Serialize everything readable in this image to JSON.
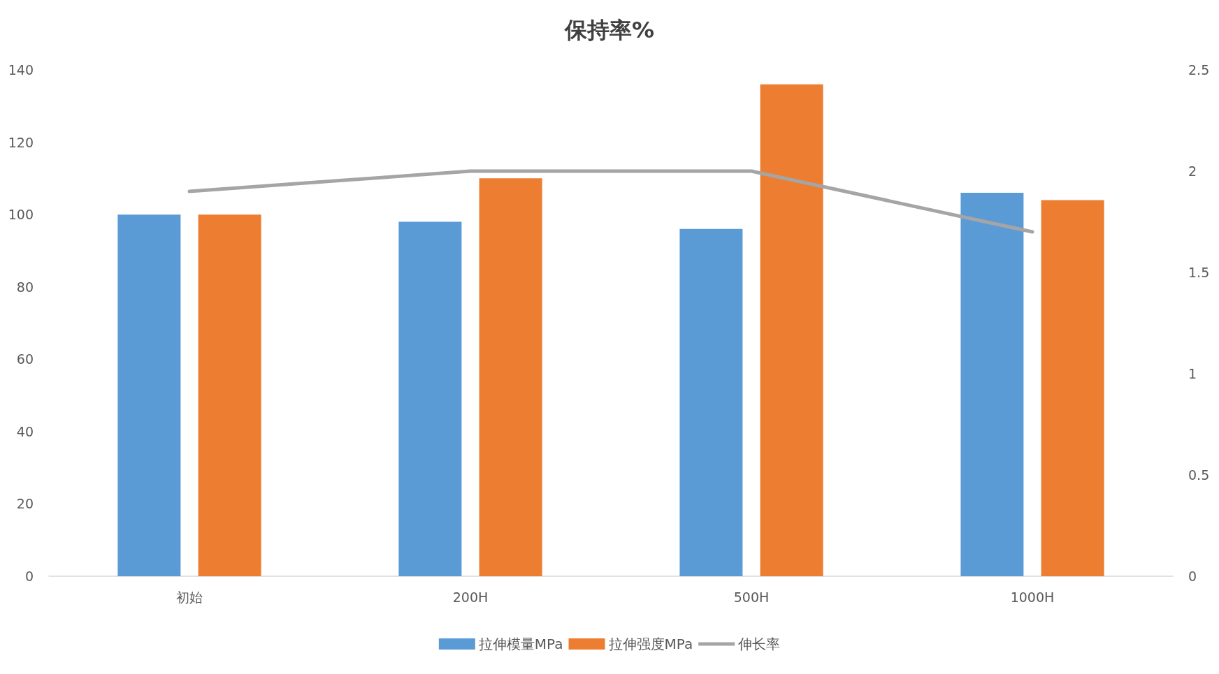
{
  "chart_data": {
    "type": "bar",
    "title": "保持率%",
    "categories": [
      "初始",
      "200H",
      "500H",
      "1000H"
    ],
    "series": [
      {
        "name": "拉伸模量MPa",
        "color": "#5b9bd5",
        "values": [
          100,
          98,
          96,
          106
        ]
      },
      {
        "name": "拉伸强度MPa",
        "color": "#ed7d31",
        "values": [
          100,
          110,
          136,
          104
        ]
      },
      {
        "name": "伸长率",
        "type": "line",
        "axis": "y2",
        "color": "#a5a5a5",
        "values": [
          1.9,
          2.0,
          2.0,
          1.7
        ]
      }
    ],
    "ylim": [
      0,
      140
    ],
    "yticks": [
      0,
      20,
      40,
      60,
      80,
      100,
      120,
      140
    ],
    "y2lim": [
      0,
      2.5
    ],
    "y2ticks": [
      0,
      0.5,
      1,
      1.5,
      2,
      2.5
    ],
    "grid": false,
    "legend": "bottom",
    "marker": "none",
    "line_style": "solid"
  }
}
